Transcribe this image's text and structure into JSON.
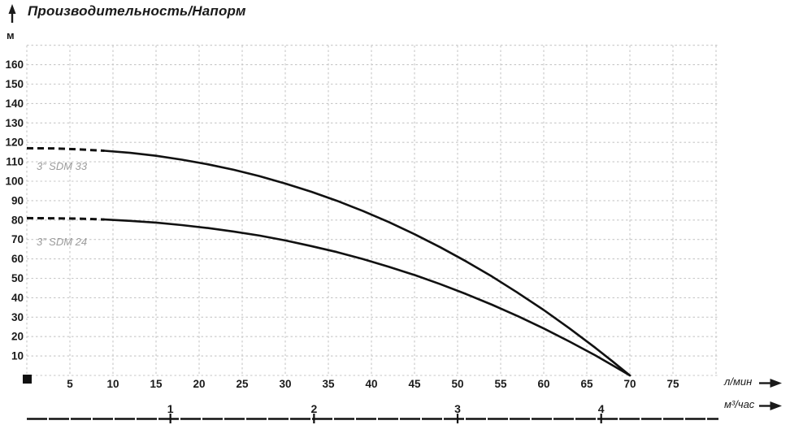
{
  "chart_data": {
    "type": "line",
    "title": "Производительность/Напорм",
    "ylabel": "м",
    "xlabel_primary": "л/мин",
    "xlabel_secondary": "м³/час",
    "x_range_lmin": [
      0,
      80
    ],
    "y_range_m": [
      0,
      170
    ],
    "x_ticks_lmin": [
      5,
      10,
      15,
      20,
      25,
      30,
      35,
      40,
      45,
      50,
      55,
      60,
      65,
      70,
      75
    ],
    "y_ticks_m": [
      10,
      20,
      30,
      40,
      50,
      60,
      70,
      80,
      90,
      100,
      110,
      120,
      130,
      140,
      150,
      160
    ],
    "secondary_ticks_m3h": [
      1,
      2,
      3,
      4
    ],
    "lmin_per_m3h": 16.667,
    "grid": true,
    "legend_position": "inline-labels",
    "series": [
      {
        "name": "3” SDM 33",
        "shutoff_head_m": 117,
        "max_flow_lmin": 70,
        "dashed_points": [
          [
            0,
            117
          ],
          [
            3,
            116.9
          ],
          [
            6,
            116.4
          ],
          [
            9,
            115.7
          ]
        ],
        "points": [
          [
            9,
            115.7
          ],
          [
            12,
            114.6
          ],
          [
            15,
            113.1
          ],
          [
            18,
            111.1
          ],
          [
            21,
            108.7
          ],
          [
            24,
            105.9
          ],
          [
            27,
            102.6
          ],
          [
            30,
            98.8
          ],
          [
            33,
            94.6
          ],
          [
            36,
            89.9
          ],
          [
            39,
            84.7
          ],
          [
            42,
            79.0
          ],
          [
            45,
            72.7
          ],
          [
            48,
            66.0
          ],
          [
            51,
            58.7
          ],
          [
            54,
            50.9
          ],
          [
            57,
            42.5
          ],
          [
            60,
            33.7
          ],
          [
            63,
            24.2
          ],
          [
            66,
            14.2
          ],
          [
            68,
            7.2
          ],
          [
            70,
            0
          ]
        ]
      },
      {
        "name": "3” SDM 24",
        "shutoff_head_m": 81,
        "max_flow_lmin": 70,
        "dashed_points": [
          [
            0,
            81
          ],
          [
            3,
            80.9
          ],
          [
            6,
            80.7
          ],
          [
            9,
            80.3
          ]
        ],
        "points": [
          [
            9,
            80.3
          ],
          [
            12,
            79.6
          ],
          [
            15,
            78.7
          ],
          [
            18,
            77.4
          ],
          [
            21,
            75.9
          ],
          [
            24,
            74.1
          ],
          [
            27,
            72.0
          ],
          [
            30,
            69.5
          ],
          [
            33,
            66.6
          ],
          [
            36,
            63.5
          ],
          [
            39,
            59.9
          ],
          [
            42,
            56.0
          ],
          [
            45,
            51.7
          ],
          [
            48,
            47.0
          ],
          [
            51,
            41.9
          ],
          [
            54,
            36.4
          ],
          [
            57,
            30.5
          ],
          [
            60,
            24.2
          ],
          [
            63,
            17.4
          ],
          [
            66,
            10.3
          ],
          [
            68,
            5.2
          ],
          [
            70,
            0
          ]
        ]
      }
    ],
    "colors": {
      "curve": "#111111",
      "grid": "#c7c7c7",
      "text": "#1a1a1a",
      "series_label": "#9c9c9c"
    }
  }
}
